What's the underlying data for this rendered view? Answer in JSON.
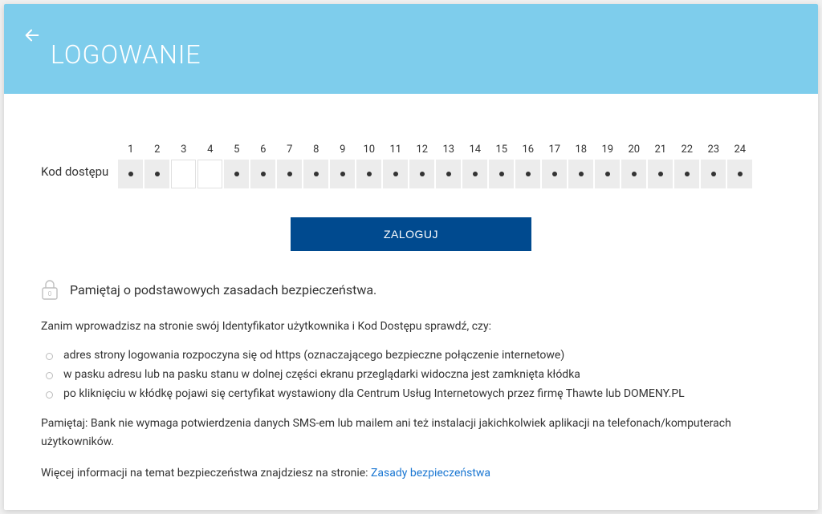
{
  "header": {
    "title": "LOGOWANIE",
    "background_color": "#7ecdec",
    "title_color": "#ffffff",
    "title_fontsize": 32
  },
  "code_input": {
    "label": "Kod dostępu",
    "count": 24,
    "active_positions": [
      3,
      4
    ],
    "numbers": [
      "1",
      "2",
      "3",
      "4",
      "5",
      "6",
      "7",
      "8",
      "9",
      "10",
      "11",
      "12",
      "13",
      "14",
      "15",
      "16",
      "17",
      "18",
      "19",
      "20",
      "21",
      "22",
      "23",
      "24"
    ],
    "filled_bg": "#ececec",
    "empty_bg": "#ffffff"
  },
  "login_button": {
    "label": "ZALOGUJ",
    "bg_color": "#004a8f",
    "text_color": "#ffffff"
  },
  "security": {
    "heading": "Pamiętaj o podstawowych zasadach bezpieczeństwa.",
    "intro": "Zanim wprowadzisz na stronie swój Identyfikator użytkownika i Kod Dostępu sprawdź, czy:",
    "bullets": [
      "adres strony logowania rozpoczyna się od https (oznaczającego bezpieczne połączenie internetowe)",
      "w pasku adresu lub na pasku stanu w dolnej części ekranu przeglądarki widoczna jest zamknięta kłódka",
      "po kliknięciu w kłódkę pojawi się certyfikat wystawiony dla Centrum Usług Internetowych przez firmę Thawte lub DOMENY.PL"
    ],
    "reminder": "Pamiętaj: Bank nie wymaga potwierdzenia danych SMS-em lub mailem ani też instalacji jakichkolwiek aplikacji na telefonach/komputerach użytkowników.",
    "more_info_prefix": "Więcej informacji na temat bezpieczeństwa znajdziesz na stronie: ",
    "more_info_link": "Zasady bezpieczeństwa",
    "link_color": "#1976d2"
  },
  "colors": {
    "text": "#333333",
    "page_bg": "#ffffff"
  }
}
